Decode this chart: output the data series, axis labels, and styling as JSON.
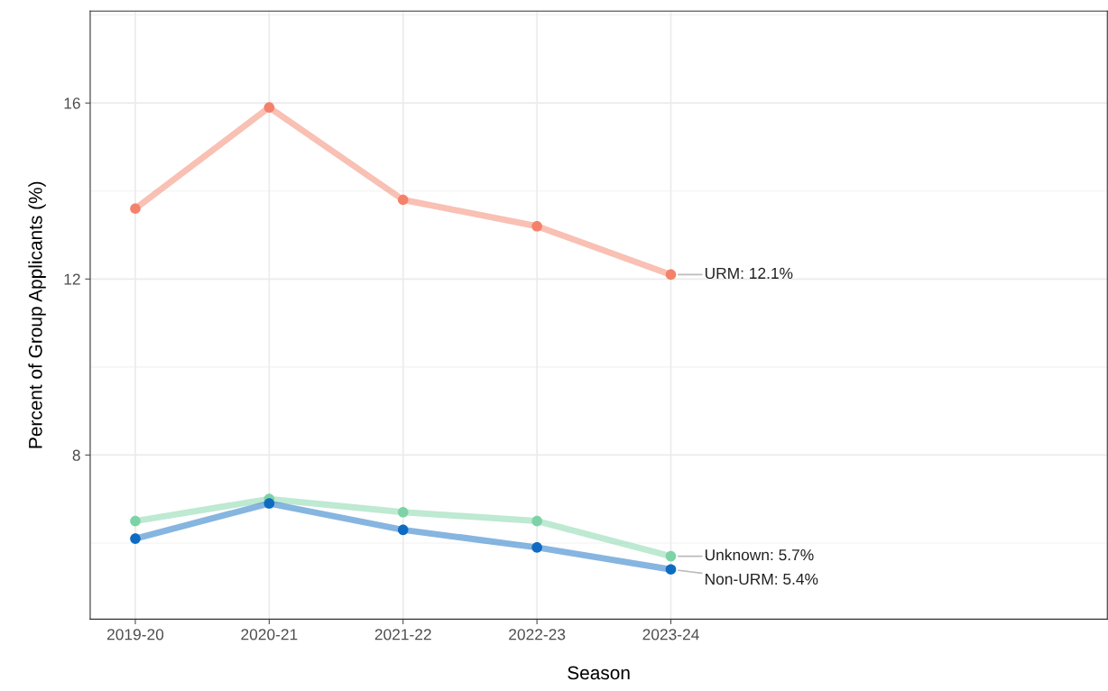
{
  "chart_data": {
    "type": "line",
    "xlabel": "Season",
    "ylabel": "Percent of Group Applicants (%)",
    "categories": [
      "2019-20",
      "2020-21",
      "2021-22",
      "2022-23",
      "2023-24"
    ],
    "series": [
      {
        "color": "#f4826a",
        "values": [
          13.6,
          15.9,
          13.8,
          13.2,
          12.1
        ]
      },
      {
        "color": "#7dd3a6",
        "values": [
          6.5,
          7.0,
          6.7,
          6.5,
          5.7
        ]
      },
      {
        "color": "#0e6bc2",
        "values": [
          6.1,
          6.9,
          6.3,
          5.9,
          5.4
        ]
      }
    ],
    "ylim": [
      4.27,
      18.09
    ],
    "yticks": [
      8,
      12,
      16
    ],
    "grid": true,
    "marker": "circle",
    "line_style": "solid",
    "annotations": [
      {
        "text": "URM: 12.1%",
        "x": "2023-24",
        "y": 12.1
      },
      {
        "text": "Unknown: 5.7%",
        "x": "2023-24",
        "y": 5.7
      },
      {
        "text": "Non-URM: 5.4%",
        "x": "2023-24",
        "y": 5.4
      }
    ]
  }
}
